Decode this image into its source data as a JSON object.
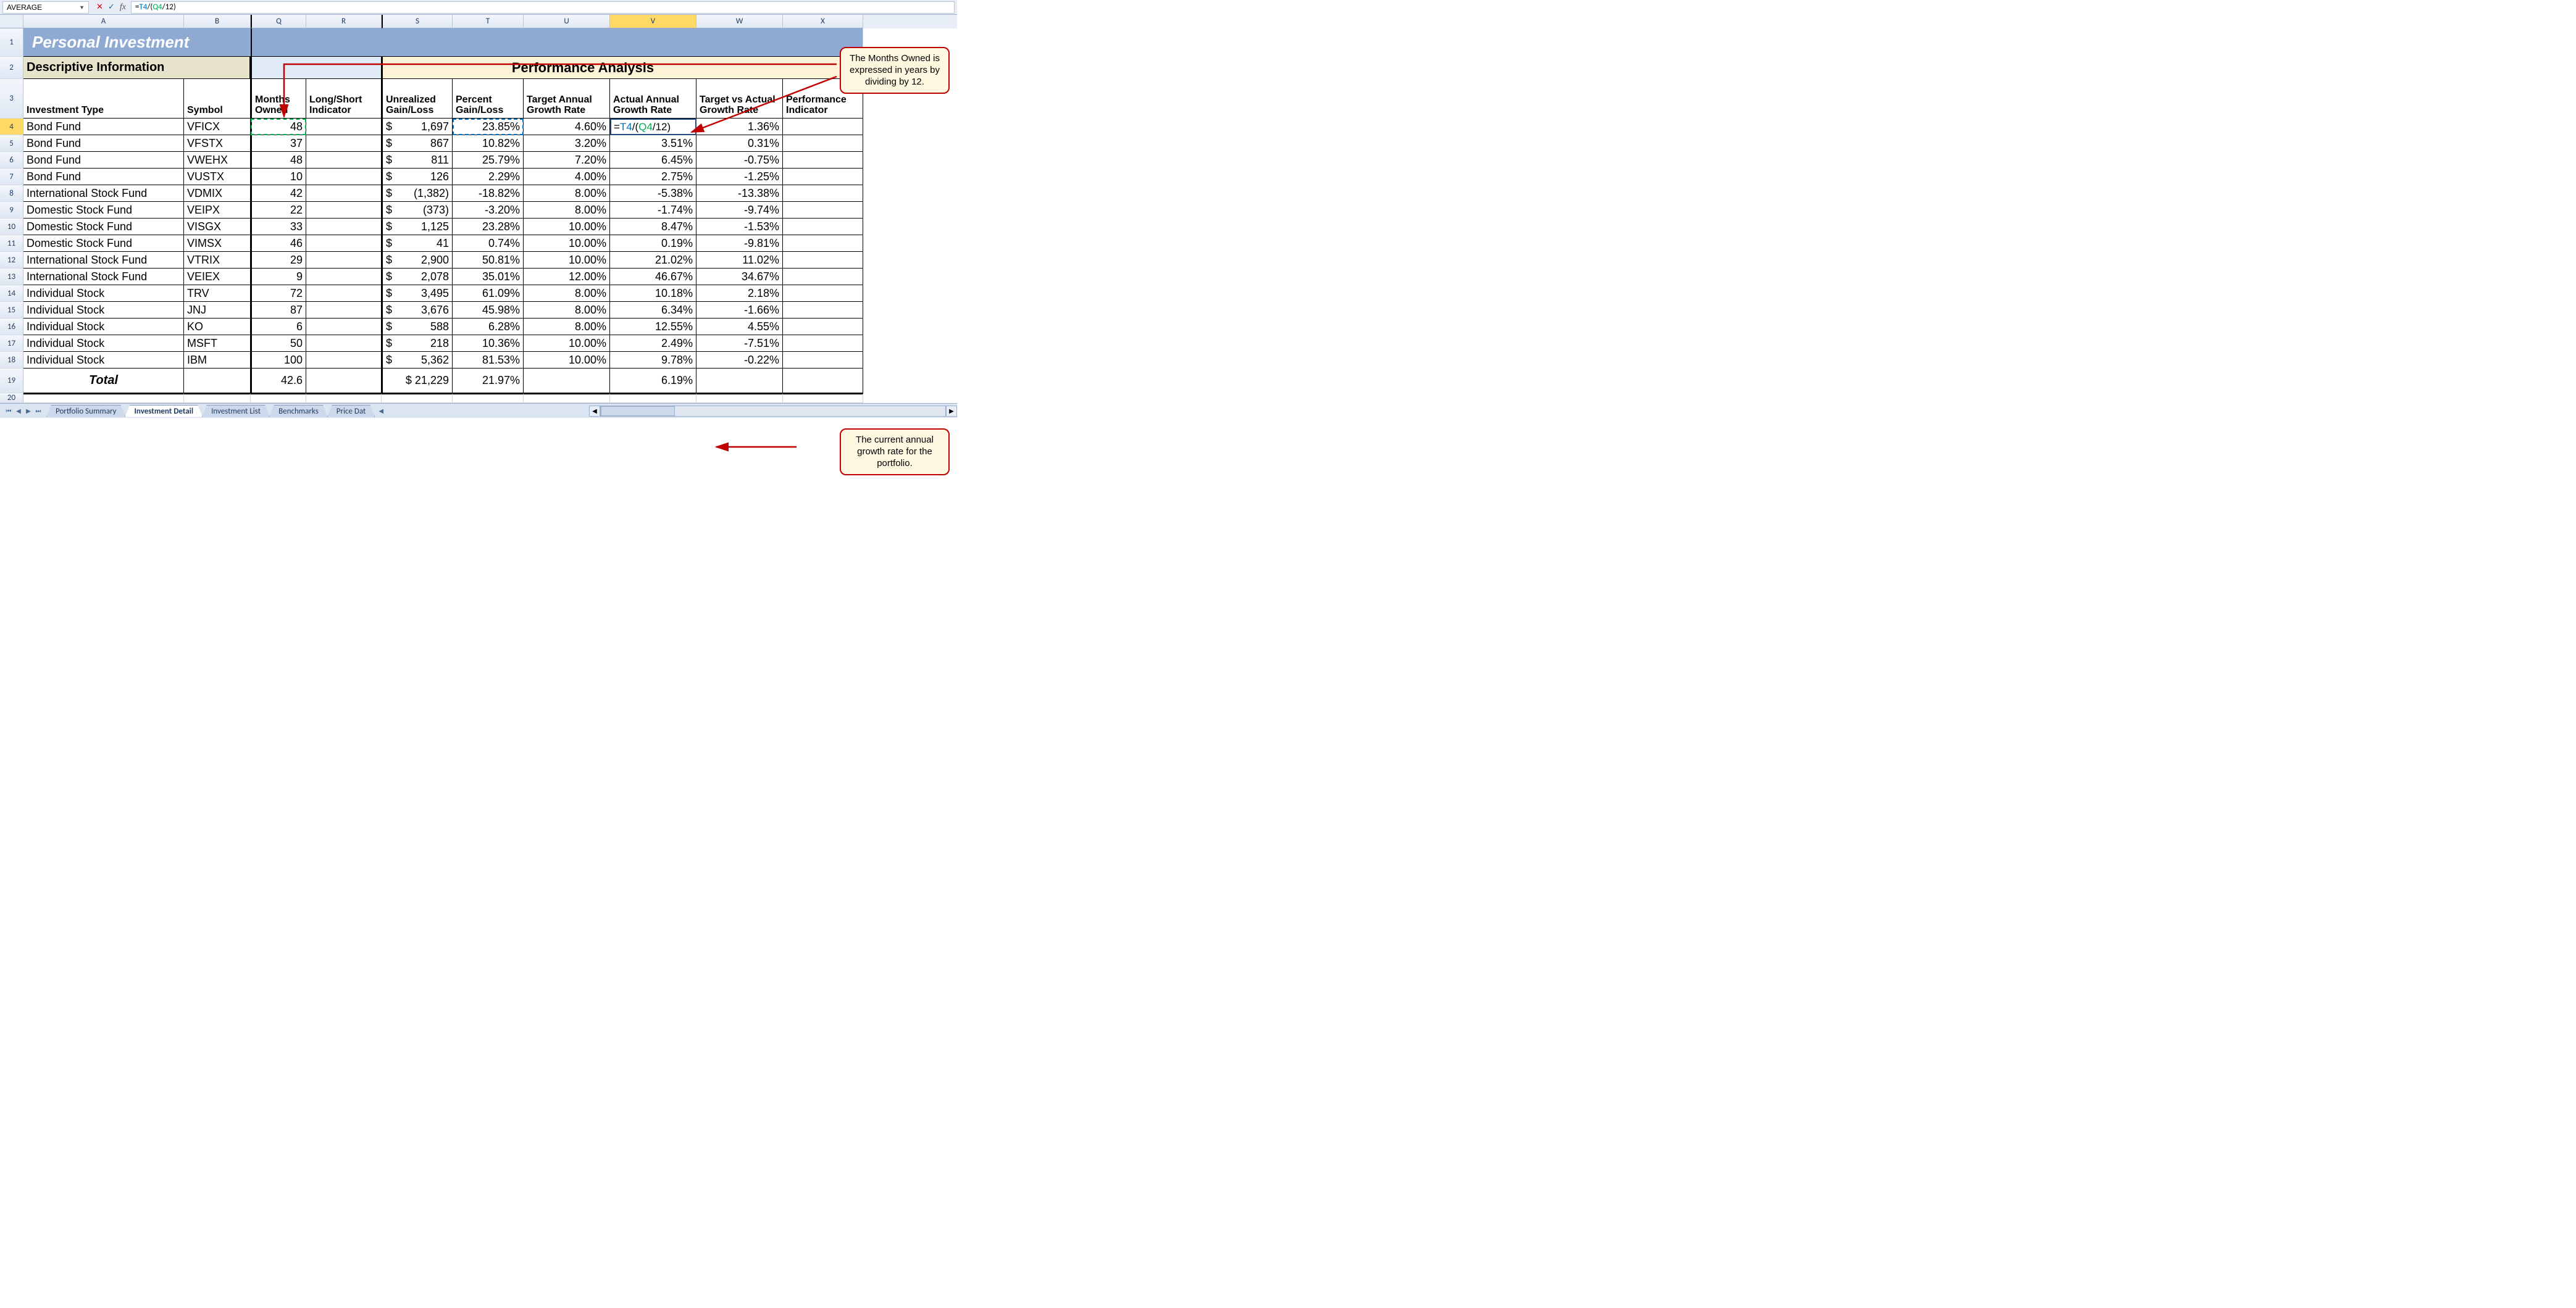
{
  "formula_bar": {
    "name_box": "AVERAGE",
    "formula_prefix": "=",
    "formula_ref1": "T4",
    "formula_mid": "/(",
    "formula_ref2": "Q4",
    "formula_suffix": "/12)"
  },
  "columns": [
    "A",
    "B",
    "Q",
    "R",
    "S",
    "T",
    "U",
    "V",
    "W",
    "X"
  ],
  "active_col": "V",
  "row_nums": [
    1,
    2,
    3,
    4,
    5,
    6,
    7,
    8,
    9,
    10,
    11,
    12,
    13,
    14,
    15,
    16,
    17,
    18,
    19,
    20
  ],
  "active_row": 4,
  "headings": {
    "title": "Personal Investment",
    "desc_info": "Descriptive Information",
    "perf": "Performance Analysis",
    "h_invtype": "Investment Type",
    "h_symbol": "Symbol",
    "h_months": "Months Owned",
    "h_ls": "Long/Short Indicator",
    "h_ugl": "Unrealized Gain/Loss",
    "h_pgl": "Percent Gain/Loss",
    "h_tagr": "Target Annual Growth Rate",
    "h_aagr": "Actual Annual Growth Rate",
    "h_tva": "Target vs Actual Growth Rate",
    "h_pi": "Performance Indicator",
    "total": "Total"
  },
  "rows": [
    {
      "type": "Bond Fund",
      "sym": "VFICX",
      "months": "48",
      "ugl": "1,697",
      "pgl": "23.85%",
      "tagr": "4.60%",
      "aagr_formula": true,
      "tva": "1.36%"
    },
    {
      "type": "Bond Fund",
      "sym": "VFSTX",
      "months": "37",
      "ugl": "867",
      "pgl": "10.82%",
      "tagr": "3.20%",
      "aagr": "3.51%",
      "tva": "0.31%"
    },
    {
      "type": "Bond Fund",
      "sym": "VWEHX",
      "months": "48",
      "ugl": "811",
      "pgl": "25.79%",
      "tagr": "7.20%",
      "aagr": "6.45%",
      "tva": "-0.75%"
    },
    {
      "type": "Bond Fund",
      "sym": "VUSTX",
      "months": "10",
      "ugl": "126",
      "pgl": "2.29%",
      "tagr": "4.00%",
      "aagr": "2.75%",
      "tva": "-1.25%"
    },
    {
      "type": "International Stock Fund",
      "sym": "VDMIX",
      "months": "42",
      "ugl": "(1,382)",
      "pgl": "-18.82%",
      "tagr": "8.00%",
      "aagr": "-5.38%",
      "tva": "-13.38%"
    },
    {
      "type": "Domestic Stock Fund",
      "sym": "VEIPX",
      "months": "22",
      "ugl": "(373)",
      "pgl": "-3.20%",
      "tagr": "8.00%",
      "aagr": "-1.74%",
      "tva": "-9.74%"
    },
    {
      "type": "Domestic Stock Fund",
      "sym": "VISGX",
      "months": "33",
      "ugl": "1,125",
      "pgl": "23.28%",
      "tagr": "10.00%",
      "aagr": "8.47%",
      "tva": "-1.53%"
    },
    {
      "type": "Domestic Stock Fund",
      "sym": "VIMSX",
      "months": "46",
      "ugl": "41",
      "pgl": "0.74%",
      "tagr": "10.00%",
      "aagr": "0.19%",
      "tva": "-9.81%"
    },
    {
      "type": "International Stock Fund",
      "sym": "VTRIX",
      "months": "29",
      "ugl": "2,900",
      "pgl": "50.81%",
      "tagr": "10.00%",
      "aagr": "21.02%",
      "tva": "11.02%"
    },
    {
      "type": "International Stock Fund",
      "sym": "VEIEX",
      "months": "9",
      "ugl": "2,078",
      "pgl": "35.01%",
      "tagr": "12.00%",
      "aagr": "46.67%",
      "tva": "34.67%"
    },
    {
      "type": "Individual Stock",
      "sym": "TRV",
      "months": "72",
      "ugl": "3,495",
      "pgl": "61.09%",
      "tagr": "8.00%",
      "aagr": "10.18%",
      "tva": "2.18%"
    },
    {
      "type": "Individual Stock",
      "sym": "JNJ",
      "months": "87",
      "ugl": "3,676",
      "pgl": "45.98%",
      "tagr": "8.00%",
      "aagr": "6.34%",
      "tva": "-1.66%"
    },
    {
      "type": "Individual Stock",
      "sym": "KO",
      "months": "6",
      "ugl": "588",
      "pgl": "6.28%",
      "tagr": "8.00%",
      "aagr": "12.55%",
      "tva": "4.55%"
    },
    {
      "type": "Individual Stock",
      "sym": "MSFT",
      "months": "50",
      "ugl": "218",
      "pgl": "10.36%",
      "tagr": "10.00%",
      "aagr": "2.49%",
      "tva": "-7.51%"
    },
    {
      "type": "Individual Stock",
      "sym": "IBM",
      "months": "100",
      "ugl": "5,362",
      "pgl": "81.53%",
      "tagr": "10.00%",
      "aagr": "9.78%",
      "tva": "-0.22%"
    }
  ],
  "totals": {
    "months": "42.6",
    "ugl": "$ 21,229",
    "pgl": "21.97%",
    "aagr": "6.19%"
  },
  "tabs": {
    "items": [
      "Portfolio Summary",
      "Investment Detail",
      "Investment List",
      "Benchmarks",
      "Price Dat"
    ],
    "active_index": 1
  },
  "callouts": {
    "c1": "The Months Owned is expressed in years by dividing by 12.",
    "c2": "The current annual growth rate for the portfolio."
  }
}
